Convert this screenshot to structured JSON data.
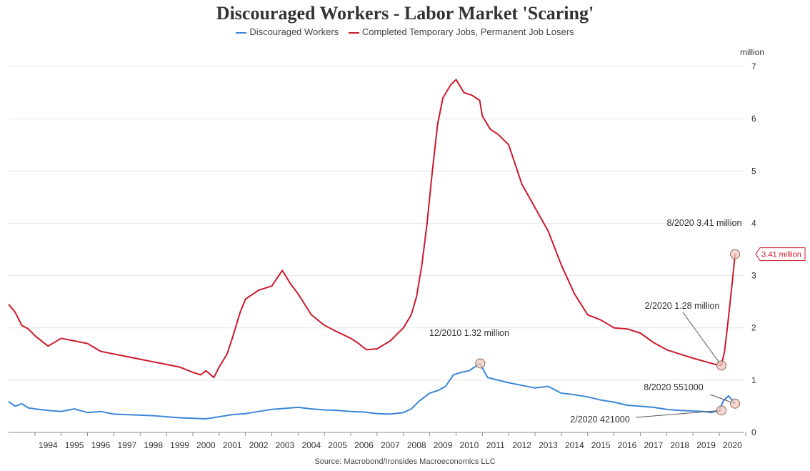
{
  "chart_data": {
    "type": "line",
    "title": "Discouraged Workers - Labor Market 'Scaring'",
    "unit_label": "million",
    "source": "Source: Macrobond/Ironsides Macroeconomics LLC",
    "ylim": [
      0,
      7
    ],
    "yticks": [
      "0",
      "1",
      "2",
      "3",
      "4",
      "5",
      "6",
      "7"
    ],
    "xlim": [
      1993.0,
      2020.95
    ],
    "xtick_labels": [
      "1994",
      "1995",
      "1996",
      "1997",
      "1998",
      "1999",
      "2000",
      "2001",
      "2002",
      "2003",
      "2004",
      "2005",
      "2006",
      "2007",
      "2008",
      "2009",
      "2010",
      "2011",
      "2012",
      "2013",
      "2014",
      "2015",
      "2016",
      "2017",
      "2018",
      "2019",
      "2020"
    ],
    "series": [
      {
        "name": "Discouraged Workers",
        "color": "#3b86d6",
        "x": [
          1993.0,
          1993.25,
          1993.5,
          1993.75,
          1994.0,
          1994.5,
          1995.0,
          1995.5,
          1996.0,
          1996.5,
          1997.0,
          1997.5,
          1998.0,
          1998.5,
          1999.0,
          1999.5,
          2000.0,
          2000.5,
          2001.0,
          2001.5,
          2002.0,
          2002.5,
          2003.0,
          2003.5,
          2004.0,
          2004.5,
          2005.0,
          2005.5,
          2006.0,
          2006.5,
          2007.0,
          2007.5,
          2008.0,
          2008.3,
          2008.6,
          2009.0,
          2009.3,
          2009.6,
          2009.9,
          2010.2,
          2010.5,
          2010.9,
          2011.2,
          2011.6,
          2012.0,
          2012.5,
          2013.0,
          2013.5,
          2014.0,
          2014.5,
          2015.0,
          2015.5,
          2016.0,
          2016.5,
          2017.0,
          2017.5,
          2018.0,
          2018.5,
          2019.0,
          2019.4,
          2019.7,
          2020.0,
          2020.15,
          2020.35,
          2020.6
        ],
        "y": [
          0.59,
          0.5,
          0.55,
          0.47,
          0.45,
          0.42,
          0.4,
          0.45,
          0.38,
          0.4,
          0.35,
          0.34,
          0.33,
          0.32,
          0.3,
          0.28,
          0.27,
          0.26,
          0.3,
          0.34,
          0.36,
          0.4,
          0.44,
          0.46,
          0.48,
          0.45,
          0.43,
          0.42,
          0.4,
          0.39,
          0.36,
          0.35,
          0.38,
          0.45,
          0.6,
          0.75,
          0.8,
          0.88,
          1.1,
          1.15,
          1.18,
          1.32,
          1.05,
          1.0,
          0.95,
          0.9,
          0.85,
          0.88,
          0.75,
          0.72,
          0.68,
          0.62,
          0.58,
          0.52,
          0.5,
          0.48,
          0.44,
          0.42,
          0.41,
          0.4,
          0.38,
          0.42,
          0.6,
          0.7,
          0.551
        ]
      },
      {
        "name": "Completed Temporary Jobs, Permanent Job Losers",
        "color": "#cc1a2b",
        "x": [
          1993.0,
          1993.25,
          1993.5,
          1993.75,
          1994.0,
          1994.5,
          1995.0,
          1995.5,
          1996.0,
          1996.5,
          1997.0,
          1997.5,
          1998.0,
          1998.5,
          1999.0,
          1999.5,
          2000.0,
          2000.3,
          2000.5,
          2000.8,
          2001.0,
          2001.3,
          2001.5,
          2001.8,
          2002.0,
          2002.5,
          2003.0,
          2003.2,
          2003.4,
          2003.7,
          2004.0,
          2004.5,
          2005.0,
          2005.5,
          2006.0,
          2006.3,
          2006.6,
          2007.0,
          2007.5,
          2008.0,
          2008.3,
          2008.5,
          2008.7,
          2008.9,
          2009.1,
          2009.3,
          2009.5,
          2009.8,
          2010.0,
          2010.3,
          2010.6,
          2010.9,
          2011.0,
          2011.3,
          2011.6,
          2012.0,
          2012.5,
          2013.0,
          2013.5,
          2014.0,
          2014.5,
          2015.0,
          2015.5,
          2016.0,
          2016.5,
          2017.0,
          2017.5,
          2018.0,
          2018.5,
          2019.0,
          2019.5,
          2019.85,
          2020.08,
          2020.2,
          2020.35,
          2020.5,
          2020.6
        ],
        "y": [
          2.45,
          2.3,
          2.05,
          1.98,
          1.85,
          1.65,
          1.8,
          1.75,
          1.7,
          1.55,
          1.5,
          1.45,
          1.4,
          1.35,
          1.3,
          1.25,
          1.15,
          1.1,
          1.18,
          1.05,
          1.25,
          1.5,
          1.8,
          2.3,
          2.55,
          2.72,
          2.8,
          2.95,
          3.1,
          2.85,
          2.65,
          2.25,
          2.05,
          1.92,
          1.8,
          1.7,
          1.58,
          1.6,
          1.75,
          2.0,
          2.25,
          2.6,
          3.2,
          4.0,
          5.0,
          5.9,
          6.4,
          6.65,
          6.75,
          6.5,
          6.45,
          6.35,
          6.05,
          5.8,
          5.7,
          5.5,
          4.75,
          4.3,
          3.85,
          3.2,
          2.65,
          2.25,
          2.15,
          2.0,
          1.98,
          1.9,
          1.72,
          1.58,
          1.5,
          1.42,
          1.35,
          1.3,
          1.28,
          1.55,
          2.2,
          2.9,
          3.41
        ]
      }
    ],
    "annotations": [
      {
        "label": "12/2010 1.32 million",
        "x": 2010.92,
        "y": 1.32,
        "series": "Discouraged Workers"
      },
      {
        "label": "2/2020 1.28 million",
        "x": 2020.08,
        "y": 1.28,
        "series": "Completed Temporary Jobs, Permanent Job Losers"
      },
      {
        "label": "8/2020 3.41 million",
        "x": 2020.6,
        "y": 3.41,
        "series": "Completed Temporary Jobs, Permanent Job Losers"
      },
      {
        "label": "8/2020 551000",
        "x": 2020.6,
        "y": 0.551,
        "series": "Discouraged Workers"
      },
      {
        "label": "2/2020 421000",
        "x": 2020.08,
        "y": 0.421,
        "series": "Discouraged Workers"
      }
    ],
    "last_value_tag": {
      "label": "3.41 million",
      "value": 3.41,
      "color": "#cc1a2b"
    }
  }
}
